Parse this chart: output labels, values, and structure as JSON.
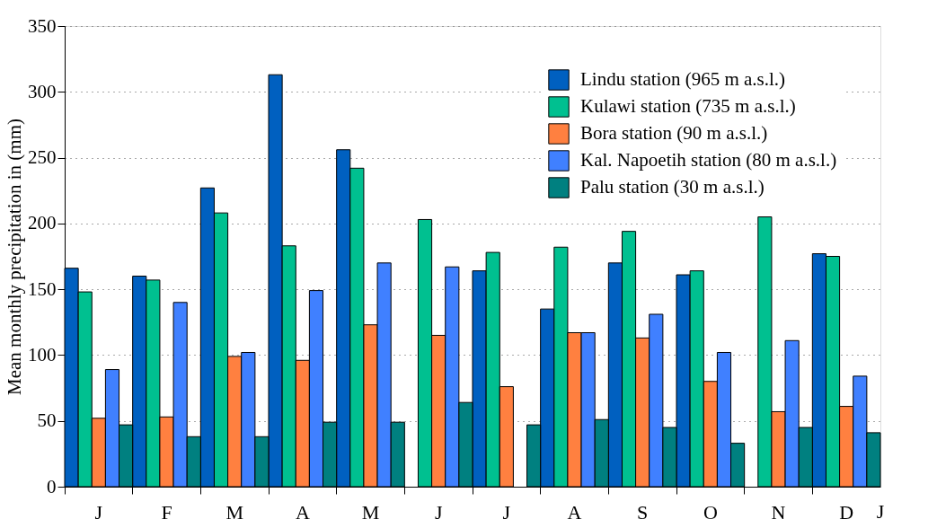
{
  "chart_data": {
    "type": "bar",
    "ylabel": "Mean monthly precipitation in (mm)",
    "categories": [
      "J",
      "F",
      "M",
      "A",
      "M",
      "J",
      "J",
      "A",
      "S",
      "O",
      "N",
      "D"
    ],
    "annotations": [
      "J"
    ],
    "ylim": [
      0,
      350
    ],
    "yticks": [
      0,
      50,
      100,
      150,
      200,
      250,
      300,
      350
    ],
    "grid": "y",
    "legend": "top right",
    "series": [
      {
        "name": "Lindu station (965 m a.s.l.)",
        "color": "#0060c0",
        "values": [
          166,
          160,
          227,
          313,
          256,
          null,
          164,
          135,
          170,
          161,
          null,
          177
        ]
      },
      {
        "name": "Kulawi station (735 m a.s.l.)",
        "color": "#00c090",
        "values": [
          148,
          157,
          208,
          183,
          242,
          203,
          178,
          182,
          194,
          164,
          205,
          175
        ]
      },
      {
        "name": "Bora station (90 m a.s.l.)",
        "color": "#ff8040",
        "values": [
          52,
          53,
          99,
          96,
          123,
          115,
          76,
          117,
          113,
          80,
          57,
          61
        ]
      },
      {
        "name": "Kal. Napoetih station (80 m a.s.l.)",
        "color": "#4080ff",
        "values": [
          89,
          140,
          102,
          149,
          170,
          167,
          null,
          117,
          131,
          102,
          111,
          84
        ]
      },
      {
        "name": "Palu station (30 m a.s.l.)",
        "color": "#008080",
        "values": [
          47,
          38,
          38,
          49,
          49,
          64,
          47,
          51,
          45,
          33,
          45,
          41
        ]
      }
    ]
  }
}
